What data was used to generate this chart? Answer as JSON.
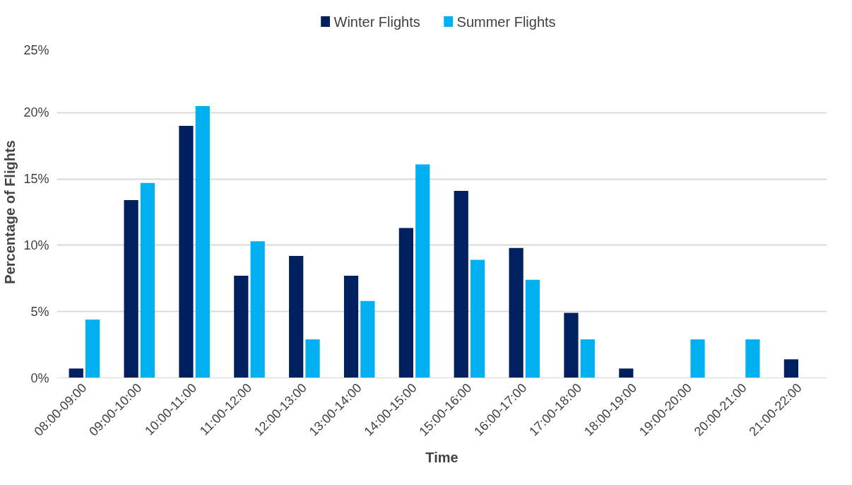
{
  "chart_data": {
    "type": "bar",
    "xlabel": "Time",
    "ylabel": "Percentage of Flights",
    "categories": [
      "08:00-09:00",
      "09:00-10:00",
      "10:00-11:00",
      "11:00-12:00",
      "12:00-13:00",
      "13:00-14:00",
      "14:00-15:00",
      "15:00-16:00",
      "16:00-17:00",
      "17:00-18:00",
      "18:00-19:00",
      "19:00-20:00",
      "20:00-21:00",
      "21:00-22:00"
    ],
    "series": [
      {
        "name": "Winter Flights",
        "color": "#002060",
        "values": [
          0.7,
          13.4,
          19.0,
          7.7,
          9.2,
          7.7,
          11.3,
          14.1,
          9.8,
          4.9,
          0.7,
          0,
          0,
          1.4
        ]
      },
      {
        "name": "Summer Flights",
        "color": "#00b0f0",
        "values": [
          4.4,
          14.7,
          20.5,
          10.3,
          2.9,
          5.8,
          16.1,
          8.9,
          7.4,
          2.9,
          0,
          2.9,
          2.9,
          0
        ]
      }
    ],
    "ylim": [
      0,
      25
    ],
    "yticks": [
      {
        "value": 0,
        "label": "0%"
      },
      {
        "value": 5,
        "label": "5%"
      },
      {
        "value": 10,
        "label": "10%"
      },
      {
        "value": 15,
        "label": "15%"
      },
      {
        "value": 20,
        "label": "20%"
      },
      {
        "value": 25,
        "label": "25%"
      }
    ],
    "grid": "y",
    "legend": "top"
  }
}
